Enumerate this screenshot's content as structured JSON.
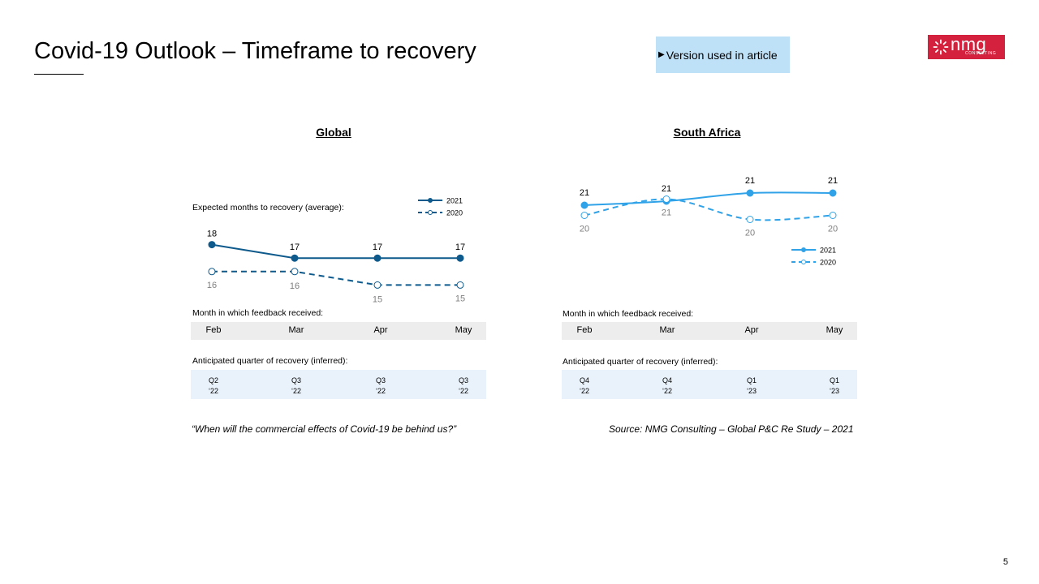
{
  "title": "Covid-19 Outlook – Timeframe to recovery",
  "badge": {
    "arrow": "▶",
    "label": "Version used in article"
  },
  "logo": {
    "word": "nmg",
    "sub": "CONSULTING"
  },
  "colors": {
    "global": "#0f5a8c",
    "south_africa": "#30a2e8",
    "badge_bg": "#bfe1f8",
    "logo_bg": "#d4213d"
  },
  "global": {
    "heading": "Global",
    "chart_label": "Expected months to recovery (average):",
    "month_label": "Month in which feedback received:",
    "months": [
      "Feb",
      "Mar",
      "Apr",
      "May"
    ],
    "quarter_label": "Anticipated quarter of recovery (inferred):",
    "quarters": [
      [
        "Q2",
        "‘22"
      ],
      [
        "Q3",
        "‘22"
      ],
      [
        "Q3",
        "‘22"
      ],
      [
        "Q3",
        "‘22"
      ]
    ],
    "footnote": "“When will the commercial effects of Covid-19 be behind us?”"
  },
  "south_africa": {
    "heading": "South Africa",
    "month_label": "Month in which feedback received:",
    "months": [
      "Feb",
      "Mar",
      "Apr",
      "May"
    ],
    "quarter_label": "Anticipated quarter of recovery (inferred):",
    "quarters": [
      [
        "Q4",
        "‘22"
      ],
      [
        "Q4",
        "‘22"
      ],
      [
        "Q1",
        "‘23"
      ],
      [
        "Q1",
        "‘23"
      ]
    ],
    "footnote": "Source: NMG Consulting – Global P&C Re Study – 2021"
  },
  "page_number": "5",
  "chart_data": [
    {
      "type": "line",
      "title": "Global",
      "ylabel": "Expected months to recovery (average):",
      "x": [
        "Feb",
        "Mar",
        "Apr",
        "May"
      ],
      "series": [
        {
          "name": "2021",
          "values": [
            18,
            17,
            17,
            17
          ],
          "labels": [
            "18",
            "17",
            "17",
            "17"
          ],
          "style": "solid"
        },
        {
          "name": "2020",
          "values": [
            16,
            16,
            15,
            15
          ],
          "labels": [
            "16",
            "16",
            "15",
            "15"
          ],
          "style": "dashed"
        }
      ],
      "ylim": [
        14,
        19
      ],
      "legend": "top-right",
      "grid": false
    },
    {
      "type": "line",
      "title": "South Africa",
      "x": [
        "Feb",
        "Mar",
        "Apr",
        "May"
      ],
      "series": [
        {
          "name": "2021",
          "values": [
            20.6,
            20.8,
            21.2,
            21.2
          ],
          "labels": [
            "21",
            "21",
            "21",
            "21"
          ],
          "style": "solid"
        },
        {
          "name": "2020",
          "values": [
            20.1,
            20.9,
            19.9,
            20.1
          ],
          "labels": [
            "20",
            "21",
            "20",
            "20"
          ],
          "style": "dashed"
        }
      ],
      "ylim": [
        19,
        22
      ],
      "legend": "bottom-right",
      "grid": false
    }
  ]
}
